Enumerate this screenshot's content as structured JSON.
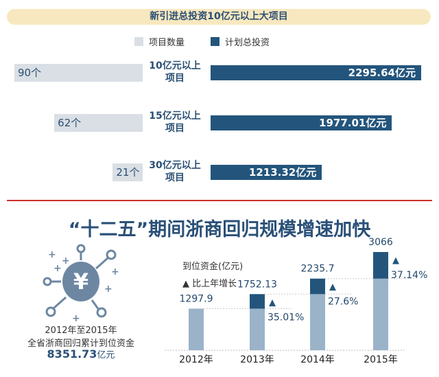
{
  "chart_data": [
    {
      "type": "bar",
      "title": "新引进总投资10亿元以上大项目",
      "legend": [
        "项目数量",
        "计划总投资"
      ],
      "categories": [
        "10亿元以上项目",
        "15亿元以上项目",
        "30亿元以上项目"
      ],
      "series": [
        {
          "name": "项目数量",
          "values": [
            90,
            62,
            21
          ],
          "labels": [
            "90个",
            "62个",
            "21个"
          ],
          "color": "#d9dfe4"
        },
        {
          "name": "计划总投资",
          "values": [
            2295.64,
            1977.01,
            1213.32
          ],
          "labels": [
            "2295.64亿元",
            "1977.01亿元",
            "1213.32亿元"
          ],
          "color": "#23557c"
        }
      ],
      "category_lines": [
        [
          "10亿元以上",
          "项目"
        ],
        [
          "15亿元以上",
          "项目"
        ],
        [
          "30亿元以上",
          "项目"
        ]
      ]
    },
    {
      "type": "bar",
      "title": "“十二五”期间浙商回归规模增速加快",
      "ylabel": "到位资金(亿元)",
      "growth_legend": "▲ 比上年增长",
      "categories": [
        "2012年",
        "2013年",
        "2014年",
        "2015年"
      ],
      "values": [
        1297.9,
        1752.13,
        2235.7,
        3066
      ],
      "value_labels": [
        "1297.9",
        "1752.13",
        "2235.7",
        "3066"
      ],
      "growth": [
        null,
        "35.01%",
        "27.6%",
        "37.14%"
      ],
      "colors": {
        "base": "#9ab3c9",
        "increase": "#23557c"
      }
    }
  ],
  "summary": {
    "line1": "2012年至2015年",
    "line2": "全省浙商回归累计到位资金",
    "amount": "8351.73",
    "unit": "亿元"
  },
  "icon": "yuan-coin-network-icon"
}
